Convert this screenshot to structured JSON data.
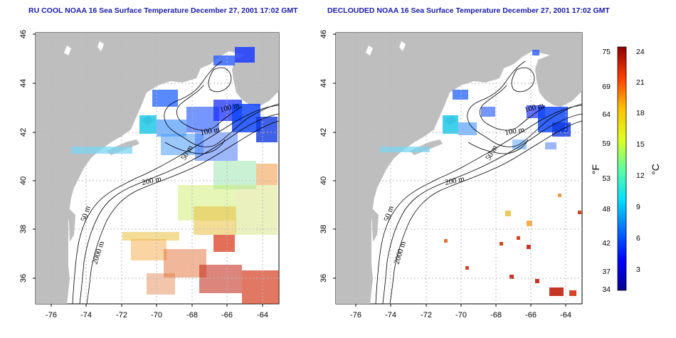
{
  "maps": [
    {
      "title": "RU COOL NOAA 16 Sea Surface Temperature December 27, 2001 17:02 GMT",
      "contour_labels": [
        "100 m",
        "100 m",
        "50 m",
        "200 m",
        "50 m",
        "2000 m"
      ],
      "x_ticks": [
        "-76",
        "-74",
        "-72",
        "-70",
        "-68",
        "-66",
        "-64"
      ],
      "y_ticks": [
        "46",
        "44",
        "42",
        "40",
        "38",
        "36"
      ]
    },
    {
      "title": "DECLOUDED NOAA 16 Sea Surface Temperature December 27, 2001 17:02 GMT",
      "contour_labels": [
        "100 m",
        "100 m",
        "50 m",
        "200 m",
        "50 m",
        "2000 m"
      ],
      "x_ticks": [
        "-76",
        "-74",
        "-72",
        "-70",
        "-68",
        "-66",
        "-64"
      ],
      "y_ticks": [
        "46",
        "44",
        "42",
        "40",
        "38",
        "36"
      ]
    }
  ],
  "colorbar": {
    "fahrenheit_ticks": [
      "75",
      "69",
      "64",
      "59",
      "53",
      "48",
      "42",
      "37",
      "34"
    ],
    "celsius_ticks": [
      "24",
      "21",
      "18",
      "15",
      "12",
      "9",
      "6",
      "3"
    ],
    "fahrenheit_unit": "°F",
    "celsius_unit": "°C"
  },
  "colors": {
    "land": "#bebebe",
    "title": "#1a1aa6",
    "grid": "#b8b8b8"
  }
}
